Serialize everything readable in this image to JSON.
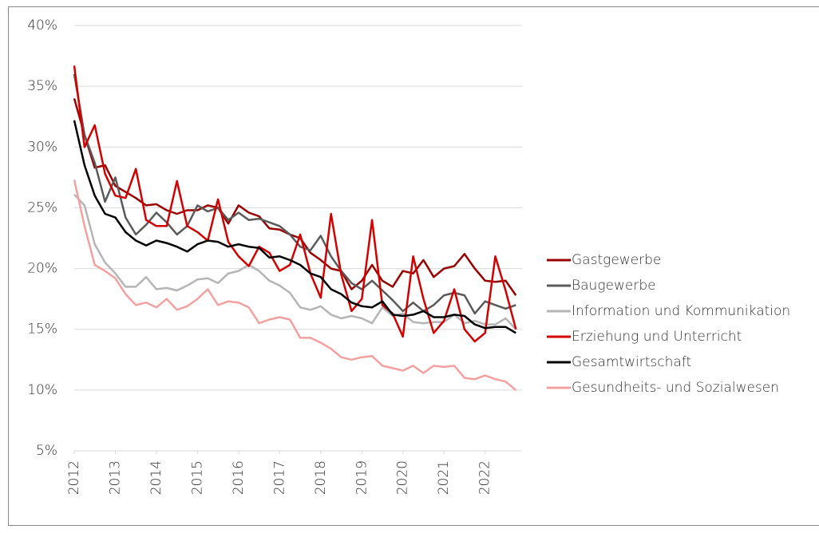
{
  "chart_data": {
    "type": "line",
    "x": [
      2012,
      2012.25,
      2012.5,
      2012.75,
      2013,
      2013.25,
      2013.5,
      2013.75,
      2014,
      2014.25,
      2014.5,
      2014.75,
      2015,
      2015.25,
      2015.5,
      2015.75,
      2016,
      2016.25,
      2016.5,
      2016.75,
      2017,
      2017.25,
      2017.5,
      2017.75,
      2018,
      2018.25,
      2018.5,
      2018.75,
      2019,
      2019.25,
      2019.5,
      2019.75,
      2020,
      2020.25,
      2020.5,
      2020.75,
      2021,
      2021.25,
      2021.5,
      2021.75,
      2022,
      2022.25,
      2022.5,
      2022.75
    ],
    "series": [
      {
        "name": "Gastgewerbe",
        "color": "#9a0000",
        "values": [
          34.0,
          31.0,
          28.3,
          28.5,
          26.8,
          26.3,
          25.8,
          25.2,
          25.3,
          24.8,
          24.5,
          24.8,
          24.8,
          25.2,
          25.0,
          23.7,
          25.2,
          24.6,
          24.3,
          23.3,
          23.2,
          22.8,
          22.5,
          21.3,
          20.7,
          20.0,
          19.8,
          18.3,
          19.0,
          20.3,
          19.0,
          18.5,
          19.8,
          19.6,
          20.7,
          19.3,
          20.0,
          20.2,
          21.2,
          20.0,
          19.0,
          18.9,
          19.0,
          17.8
        ]
      },
      {
        "name": "Baugewerbe",
        "color": "#5a5a5a",
        "values": [
          36.0,
          31.0,
          28.7,
          25.5,
          27.5,
          24.2,
          22.8,
          23.6,
          24.6,
          23.8,
          22.8,
          23.5,
          25.2,
          24.7,
          25.0,
          24.0,
          24.6,
          24.0,
          24.1,
          23.8,
          23.5,
          22.8,
          21.8,
          21.5,
          22.7,
          21.0,
          19.8,
          18.8,
          18.3,
          19.0,
          18.2,
          17.4,
          16.5,
          17.2,
          16.5,
          17.0,
          17.8,
          18.0,
          17.8,
          16.3,
          17.3,
          17.0,
          16.7,
          17.0
        ]
      },
      {
        "name": "Information und Kommunikation",
        "color": "#b5b5b5",
        "values": [
          26.1,
          25.2,
          22.0,
          20.5,
          19.6,
          18.5,
          18.5,
          19.3,
          18.3,
          18.4,
          18.2,
          18.6,
          19.1,
          19.2,
          18.8,
          19.6,
          19.8,
          20.3,
          19.8,
          19.0,
          18.6,
          18.0,
          16.8,
          16.6,
          16.9,
          16.2,
          15.9,
          16.1,
          15.9,
          15.5,
          16.8,
          16.1,
          16.3,
          15.6,
          15.5,
          15.6,
          15.6,
          16.2,
          15.5,
          15.7,
          15.4,
          15.4,
          15.9,
          15.0
        ]
      },
      {
        "name": "Erziehung und Unterricht",
        "color": "#d40000",
        "values": [
          36.7,
          30.0,
          31.8,
          27.8,
          26.0,
          25.8,
          28.2,
          24.0,
          23.5,
          23.5,
          27.2,
          23.5,
          23.0,
          22.3,
          25.7,
          22.2,
          21.0,
          20.2,
          21.8,
          21.3,
          19.8,
          20.3,
          22.8,
          19.6,
          17.6,
          24.5,
          19.5,
          16.5,
          17.5,
          24.0,
          17.0,
          16.3,
          14.4,
          21.0,
          17.5,
          14.7,
          15.7,
          18.3,
          15.0,
          14.0,
          14.7,
          21.0,
          18.2,
          15.0
        ]
      },
      {
        "name": "Gesamtwirtschaft",
        "color": "#000000",
        "values": [
          32.2,
          28.5,
          26.0,
          24.5,
          24.2,
          23.0,
          22.3,
          21.9,
          22.3,
          22.1,
          21.8,
          21.4,
          22.0,
          22.3,
          22.2,
          21.8,
          22.0,
          21.8,
          21.7,
          20.9,
          21.0,
          20.7,
          20.3,
          19.6,
          19.3,
          18.3,
          17.9,
          17.2,
          16.9,
          16.8,
          17.3,
          16.2,
          16.1,
          16.2,
          16.5,
          16.0,
          16.0,
          16.2,
          16.1,
          15.4,
          15.1,
          15.2,
          15.2,
          14.7
        ]
      },
      {
        "name": "Gesundheits- und Sozialwesen",
        "color": "#f4a0a0",
        "values": [
          27.3,
          23.5,
          20.3,
          19.8,
          19.2,
          17.9,
          17.0,
          17.2,
          16.8,
          17.5,
          16.6,
          16.9,
          17.5,
          18.3,
          17.0,
          17.3,
          17.2,
          16.8,
          15.5,
          15.8,
          16.0,
          15.8,
          14.3,
          14.3,
          13.9,
          13.4,
          12.7,
          12.5,
          12.7,
          12.8,
          12.0,
          11.8,
          11.6,
          12.0,
          11.4,
          12.0,
          11.9,
          12.0,
          11.0,
          10.9,
          11.2,
          10.9,
          10.7,
          10.0
        ]
      }
    ],
    "xlim": [
      2012,
      2022.9
    ],
    "xticks": [
      2012,
      2013,
      2014,
      2015,
      2016,
      2017,
      2018,
      2019,
      2020,
      2021,
      2022
    ],
    "ylim": [
      5,
      40
    ],
    "yticks": [
      {
        "value": 5,
        "label": "5%"
      },
      {
        "value": 10,
        "label": "10%"
      },
      {
        "value": 15,
        "label": "15%"
      },
      {
        "value": 20,
        "label": "20%"
      },
      {
        "value": 25,
        "label": "25%"
      },
      {
        "value": 30,
        "label": "30%"
      },
      {
        "value": 35,
        "label": "35%"
      },
      {
        "value": 40,
        "label": "40%"
      }
    ],
    "grid": true,
    "legend": "right"
  }
}
